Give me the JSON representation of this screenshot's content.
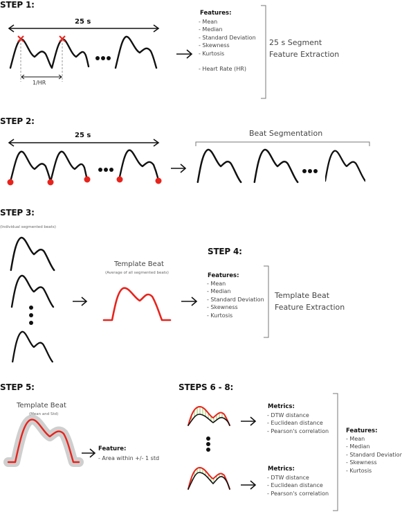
{
  "steps": {
    "s1": "STEP 1:",
    "s2": "STEP 2:",
    "s3": "STEP 3:",
    "s4": "STEP 4:",
    "s5": "STEP 5:",
    "s68": "STEPS 6 - 8:"
  },
  "step1": {
    "duration": "25 s",
    "hr_interval": "1/HR",
    "features_title": "Features:",
    "features": [
      "- Mean",
      "- Median",
      "- Standard Deviation",
      "- Skewness",
      "- Kurtosis",
      "- Heart Rate (HR)"
    ],
    "label_line1": "25 s Segment",
    "label_line2": "Feature Extraction"
  },
  "step2": {
    "duration": "25 s",
    "label": "Beat Segmentation"
  },
  "step3": {
    "note": "(Individual segmented beats)",
    "template_title": "Template Beat",
    "template_note": "(Average of all segmented beats)"
  },
  "step4": {
    "features_title": "Features:",
    "features": [
      "- Mean",
      "- Median",
      "- Standard Deviation",
      "- Skewness",
      "- Kurtosis"
    ],
    "label_line1": "Template Beat",
    "label_line2": "Feature Extraction"
  },
  "step5": {
    "template_title": "Template Beat",
    "template_note": "(Mean and Std)",
    "feature_title": "Feature:",
    "feature_item": "- Area within +/- 1 std"
  },
  "step68": {
    "metrics_title": "Metrics:",
    "metrics": [
      "- DTW distance",
      "- Euclidean distance",
      "- Pearson's correlation"
    ],
    "features_title": "Features:",
    "features": [
      "- Mean",
      "- Median",
      "- Standard Deviation",
      "- Skewness",
      "- Kurtosis"
    ]
  },
  "colors": {
    "accent": "#e8231c",
    "band": "#cfcfcf",
    "fill": "#c8e6a0"
  }
}
